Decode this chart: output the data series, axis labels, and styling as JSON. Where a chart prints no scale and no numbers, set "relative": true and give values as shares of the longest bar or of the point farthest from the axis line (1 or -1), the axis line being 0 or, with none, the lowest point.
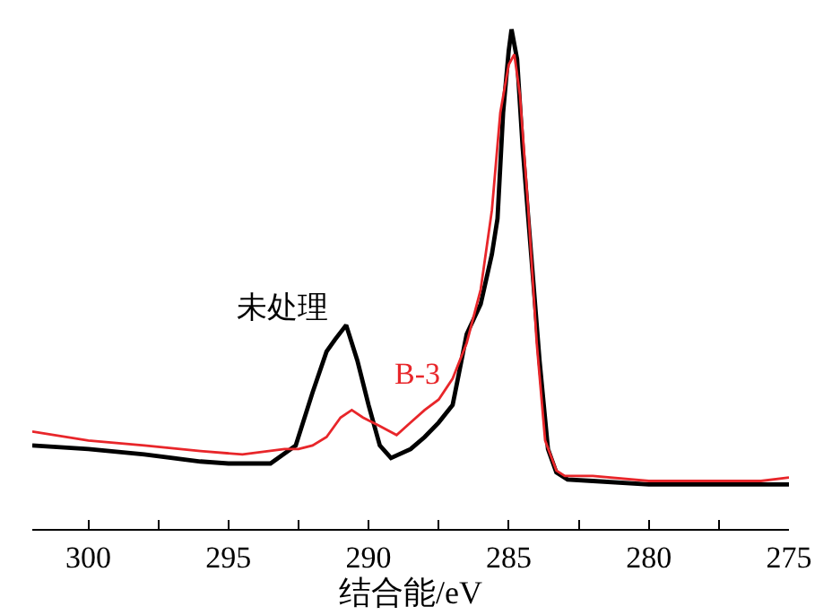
{
  "chart_data": {
    "type": "line",
    "xlabel": "结合能/eV",
    "relative": true,
    "legend": false,
    "grid": false,
    "marker": "none",
    "line_style": "solid",
    "xlim": [
      302,
      275
    ],
    "xticks": [
      300,
      {
        "value": 297.5,
        "label": null
      },
      295,
      {
        "value": 292.5,
        "label": null
      },
      290,
      {
        "value": 287.5,
        "label": null
      },
      285,
      {
        "value": 282.5,
        "label": null
      },
      280,
      {
        "value": 277.5,
        "label": null
      },
      275
    ],
    "series": [
      {
        "name": "未处理",
        "color": "#000000",
        "x": [
          302,
          300,
          298,
          296,
          295,
          293.5,
          292.6,
          292,
          291.5,
          291.2,
          290.8,
          290.4,
          290,
          289.6,
          289.2,
          288.5,
          288,
          287.5,
          287,
          286.5,
          286,
          285.6,
          285.4,
          285.2,
          285,
          284.9,
          284.7,
          284.5,
          284.2,
          283.9,
          283.6,
          283.3,
          282.9,
          282,
          280,
          278,
          276,
          275
        ],
        "values": [
          0.167,
          0.16,
          0.149,
          0.135,
          0.131,
          0.131,
          0.167,
          0.273,
          0.355,
          0.379,
          0.408,
          0.337,
          0.248,
          0.167,
          0.142,
          0.16,
          0.184,
          0.213,
          0.248,
          0.39,
          0.45,
          0.55,
          0.621,
          0.833,
          0.957,
          1,
          0.94,
          0.762,
          0.55,
          0.337,
          0.16,
          0.113,
          0.099,
          0.096,
          0.089,
          0.089,
          0.089,
          0.089
        ]
      },
      {
        "name": "B-3",
        "color": "#e8262a",
        "x": [
          302,
          300,
          298,
          296,
          294.5,
          293,
          292.5,
          292,
          291.5,
          291,
          290.6,
          290.2,
          289.6,
          289,
          288.5,
          288,
          287.5,
          287,
          286.5,
          286,
          285.6,
          285.3,
          285,
          284.8,
          284.6,
          284.3,
          284,
          283.7,
          283.3,
          283,
          282,
          280,
          278,
          276,
          275
        ],
        "values": [
          0.195,
          0.177,
          0.167,
          0.156,
          0.149,
          0.16,
          0.16,
          0.167,
          0.184,
          0.223,
          0.238,
          0.223,
          0.206,
          0.188,
          0.213,
          0.238,
          0.259,
          0.301,
          0.372,
          0.479,
          0.638,
          0.833,
          0.929,
          0.95,
          0.869,
          0.638,
          0.372,
          0.177,
          0.117,
          0.106,
          0.106,
          0.096,
          0.096,
          0.096,
          0.103
        ]
      }
    ]
  }
}
